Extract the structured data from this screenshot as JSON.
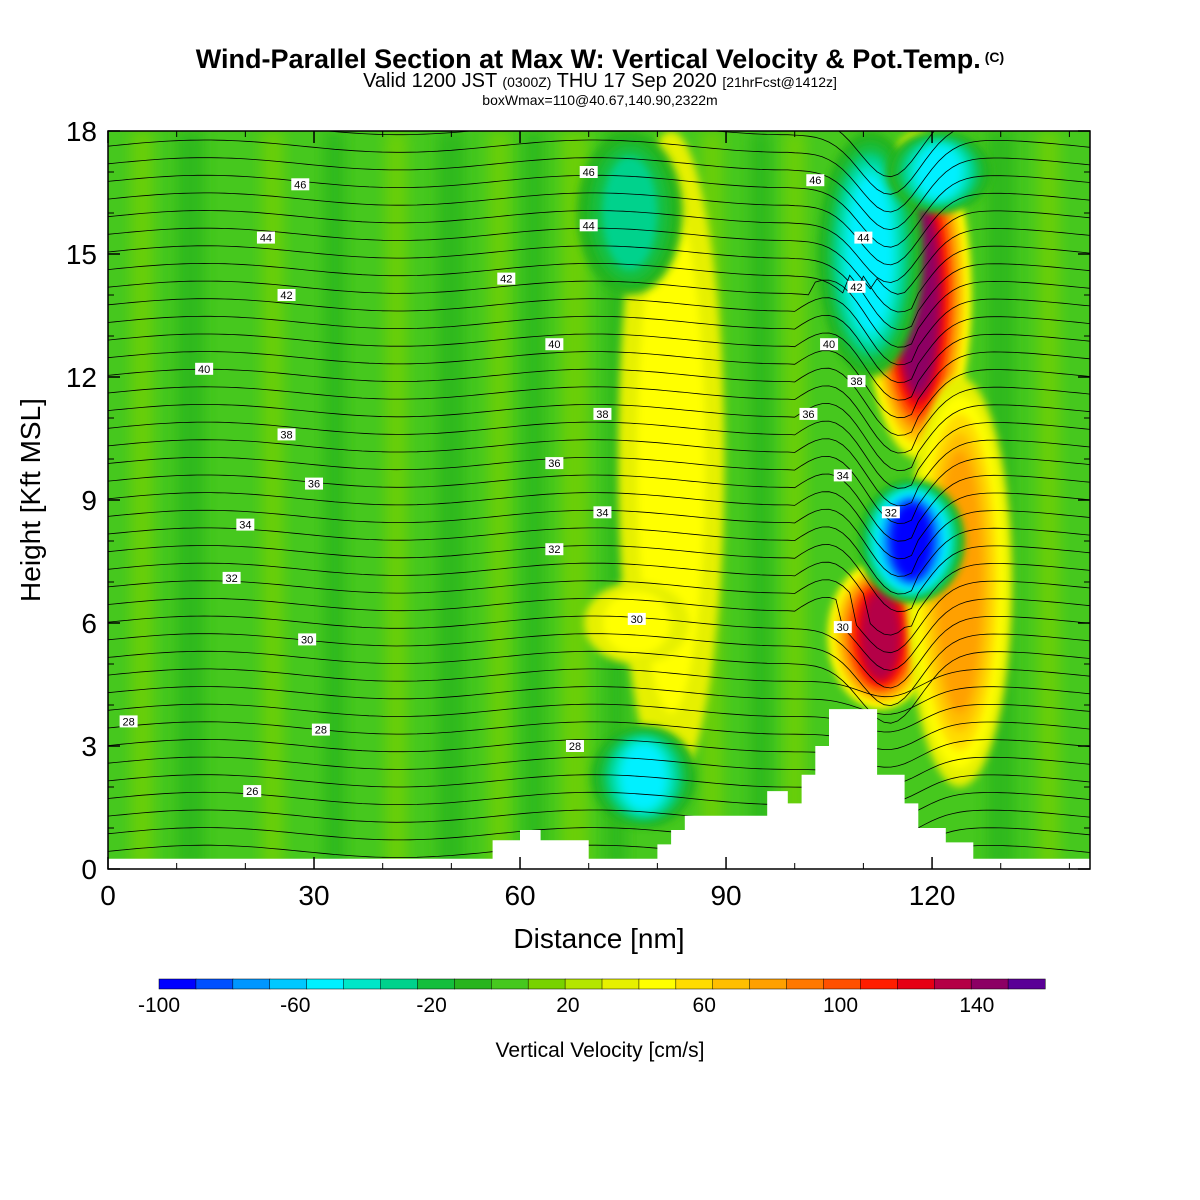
{
  "header": {
    "title_main": "Wind-Parallel Section at Max W: Vertical Velocity & Pot.Temp.",
    "title_mark": "(C)",
    "valid_prefix": "Valid 1200 JST",
    "valid_utc": "(0300Z)",
    "valid_date": "THU 17 Sep 2020",
    "forecast": "[21hrFcst@1412z]",
    "boxwmax": "boxWmax=110@40.67,140.90,2322m"
  },
  "chart_data": {
    "type": "heatmap",
    "xlabel": "Distance [nm]",
    "ylabel": "Height [Kft MSL]",
    "xlim": [
      0,
      143
    ],
    "ylim": [
      0,
      18
    ],
    "x_ticks": [
      0,
      30,
      60,
      90,
      120
    ],
    "y_ticks": [
      0,
      3,
      6,
      9,
      12,
      15,
      18
    ],
    "colorbar": {
      "label": "Vertical Velocity [cm/s]",
      "min": -100,
      "max": 160,
      "step": 10,
      "tick_labels": [
        -100,
        -60,
        -20,
        20,
        60,
        100,
        140
      ],
      "colors": [
        "#0000ff",
        "#0050ff",
        "#0096ff",
        "#00c8ff",
        "#00f0ff",
        "#00e6c8",
        "#00d28c",
        "#14be3c",
        "#28b41e",
        "#46c81e",
        "#78d200",
        "#b4e600",
        "#e6f000",
        "#ffff00",
        "#ffdc00",
        "#ffbe00",
        "#ffa000",
        "#ff7800",
        "#ff5000",
        "#ff1e00",
        "#e60014",
        "#b40046",
        "#8c0064",
        "#5a0096"
      ]
    },
    "terrain": [
      [
        0,
        0.25
      ],
      [
        56,
        0.25
      ],
      [
        56,
        0.7
      ],
      [
        60,
        0.7
      ],
      [
        60,
        0.95
      ],
      [
        63,
        0.95
      ],
      [
        63,
        0.7
      ],
      [
        70,
        0.7
      ],
      [
        70,
        0.25
      ],
      [
        80,
        0.25
      ],
      [
        80,
        0.6
      ],
      [
        82,
        0.6
      ],
      [
        82,
        0.95
      ],
      [
        84,
        0.95
      ],
      [
        84,
        1.3
      ],
      [
        96,
        1.3
      ],
      [
        96,
        1.9
      ],
      [
        99,
        1.9
      ],
      [
        99,
        1.6
      ],
      [
        101,
        1.6
      ],
      [
        101,
        2.3
      ],
      [
        103,
        2.3
      ],
      [
        103,
        3
      ],
      [
        105,
        3
      ],
      [
        105,
        3.9
      ],
      [
        112,
        3.9
      ],
      [
        112,
        2.3
      ],
      [
        116,
        2.3
      ],
      [
        116,
        1.6
      ],
      [
        118,
        1.6
      ],
      [
        118,
        1.0
      ],
      [
        122,
        1.0
      ],
      [
        122,
        0.65
      ],
      [
        126,
        0.65
      ],
      [
        126,
        0.25
      ],
      [
        143,
        0.25
      ]
    ],
    "updrafts": [
      {
        "x": 112.5,
        "y0": 3.9,
        "y1": 7.5,
        "peak_w": 110
      },
      {
        "x": 118,
        "y0": 10,
        "y1": 18,
        "peak_w": 120
      },
      {
        "x": 82,
        "y0": 2,
        "y1": 18,
        "peak_w": 35
      },
      {
        "x": 124,
        "y0": 2,
        "y1": 12,
        "peak_w": 60
      },
      {
        "x": 77,
        "y0": 5,
        "y1": 7,
        "peak_w": 30
      }
    ],
    "downdrafts": [
      {
        "x": 117,
        "y0": 6.5,
        "y1": 9.5,
        "peak_w": -100
      },
      {
        "x": 111,
        "y0": 12,
        "y1": 18,
        "peak_w": -60
      },
      {
        "x": 78,
        "y0": 1,
        "y1": 3.5,
        "peak_w": -60
      },
      {
        "x": 76,
        "y0": 14,
        "y1": 18,
        "peak_w": -40
      },
      {
        "x": 121,
        "y0": 16,
        "y1": 18,
        "peak_w": -60
      }
    ],
    "theta_contour_labels": [
      {
        "text": "46",
        "x": 28,
        "y": 16.7
      },
      {
        "text": "46",
        "x": 70,
        "y": 17.0
      },
      {
        "text": "46",
        "x": 103,
        "y": 16.8
      },
      {
        "text": "44",
        "x": 23,
        "y": 15.4
      },
      {
        "text": "44",
        "x": 70,
        "y": 15.7
      },
      {
        "text": "44",
        "x": 110,
        "y": 15.4
      },
      {
        "text": "42",
        "x": 26,
        "y": 14.0
      },
      {
        "text": "42",
        "x": 58,
        "y": 14.4
      },
      {
        "text": "42",
        "x": 109,
        "y": 14.2
      },
      {
        "text": "40",
        "x": 14,
        "y": 12.2
      },
      {
        "text": "40",
        "x": 65,
        "y": 12.8
      },
      {
        "text": "40",
        "x": 105,
        "y": 12.8
      },
      {
        "text": "38",
        "x": 26,
        "y": 10.6
      },
      {
        "text": "38",
        "x": 72,
        "y": 11.1
      },
      {
        "text": "38",
        "x": 109,
        "y": 11.9
      },
      {
        "text": "36",
        "x": 30,
        "y": 9.4
      },
      {
        "text": "36",
        "x": 65,
        "y": 9.9
      },
      {
        "text": "36",
        "x": 102,
        "y": 11.1
      },
      {
        "text": "34",
        "x": 20,
        "y": 8.4
      },
      {
        "text": "34",
        "x": 72,
        "y": 8.7
      },
      {
        "text": "34",
        "x": 107,
        "y": 9.6
      },
      {
        "text": "32",
        "x": 18,
        "y": 7.1
      },
      {
        "text": "32",
        "x": 65,
        "y": 7.8
      },
      {
        "text": "32",
        "x": 114,
        "y": 8.7
      },
      {
        "text": "30",
        "x": 29,
        "y": 5.6
      },
      {
        "text": "30",
        "x": 77,
        "y": 6.1
      },
      {
        "text": "30",
        "x": 107,
        "y": 5.9
      },
      {
        "text": "28",
        "x": 3,
        "y": 3.6
      },
      {
        "text": "28",
        "x": 31,
        "y": 3.4
      },
      {
        "text": "28",
        "x": 68,
        "y": 3.0
      },
      {
        "text": "26",
        "x": 21,
        "y": 1.9
      }
    ]
  }
}
